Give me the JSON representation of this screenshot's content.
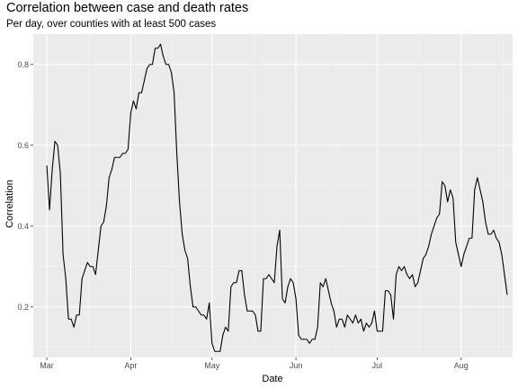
{
  "chart_data": {
    "type": "line",
    "title": "Correlation between case and death rates",
    "subtitle": "Per day, over counties with at least 500 cases",
    "xlabel": "Date",
    "ylabel": "Correlation",
    "x_ticks": [
      "Mar",
      "Apr",
      "May",
      "Jun",
      "Jul",
      "Aug"
    ],
    "y_ticks": [
      "0.2",
      "0.4",
      "0.6",
      "0.8"
    ],
    "xlim": [
      "2020-02-25",
      "2020-08-20"
    ],
    "ylim": [
      0.075,
      0.875
    ],
    "grid": true,
    "series": [
      {
        "x_start": "2020-03-01",
        "values": [
          0.55,
          0.44,
          0.54,
          0.61,
          0.6,
          0.53,
          0.33,
          0.27,
          0.17,
          0.17,
          0.15,
          0.18,
          0.18,
          0.27,
          0.29,
          0.31,
          0.3,
          0.3,
          0.28,
          0.34,
          0.4,
          0.41,
          0.45,
          0.52,
          0.54,
          0.57,
          0.57,
          0.57,
          0.58,
          0.58,
          0.59,
          0.68,
          0.71,
          0.69,
          0.73,
          0.73,
          0.76,
          0.79,
          0.8,
          0.8,
          0.84,
          0.84,
          0.85,
          0.82,
          0.8,
          0.8,
          0.78,
          0.73,
          0.58,
          0.46,
          0.38,
          0.34,
          0.32,
          0.25,
          0.2,
          0.2,
          0.19,
          0.18,
          0.18,
          0.17,
          0.21,
          0.11,
          0.09,
          0.09,
          0.09,
          0.13,
          0.15,
          0.14,
          0.25,
          0.26,
          0.26,
          0.29,
          0.29,
          0.23,
          0.19,
          0.19,
          0.19,
          0.18,
          0.14,
          0.14,
          0.27,
          0.27,
          0.28,
          0.27,
          0.26,
          0.35,
          0.39,
          0.22,
          0.21,
          0.25,
          0.27,
          0.26,
          0.22,
          0.13,
          0.12,
          0.12,
          0.12,
          0.11,
          0.12,
          0.12,
          0.15,
          0.26,
          0.25,
          0.27,
          0.24,
          0.21,
          0.19,
          0.15,
          0.17,
          0.17,
          0.15,
          0.18,
          0.17,
          0.16,
          0.18,
          0.16,
          0.17,
          0.14,
          0.16,
          0.15,
          0.16,
          0.19,
          0.14,
          0.14,
          0.14,
          0.24,
          0.24,
          0.23,
          0.17,
          0.28,
          0.3,
          0.29,
          0.3,
          0.28,
          0.27,
          0.28,
          0.25,
          0.26,
          0.29,
          0.32,
          0.33,
          0.35,
          0.38,
          0.4,
          0.42,
          0.43,
          0.51,
          0.5,
          0.46,
          0.49,
          0.47,
          0.36,
          0.33,
          0.3,
          0.33,
          0.35,
          0.37,
          0.37,
          0.49,
          0.52,
          0.49,
          0.46,
          0.41,
          0.38,
          0.38,
          0.39,
          0.37,
          0.36,
          0.33,
          0.28,
          0.23
        ]
      }
    ]
  }
}
